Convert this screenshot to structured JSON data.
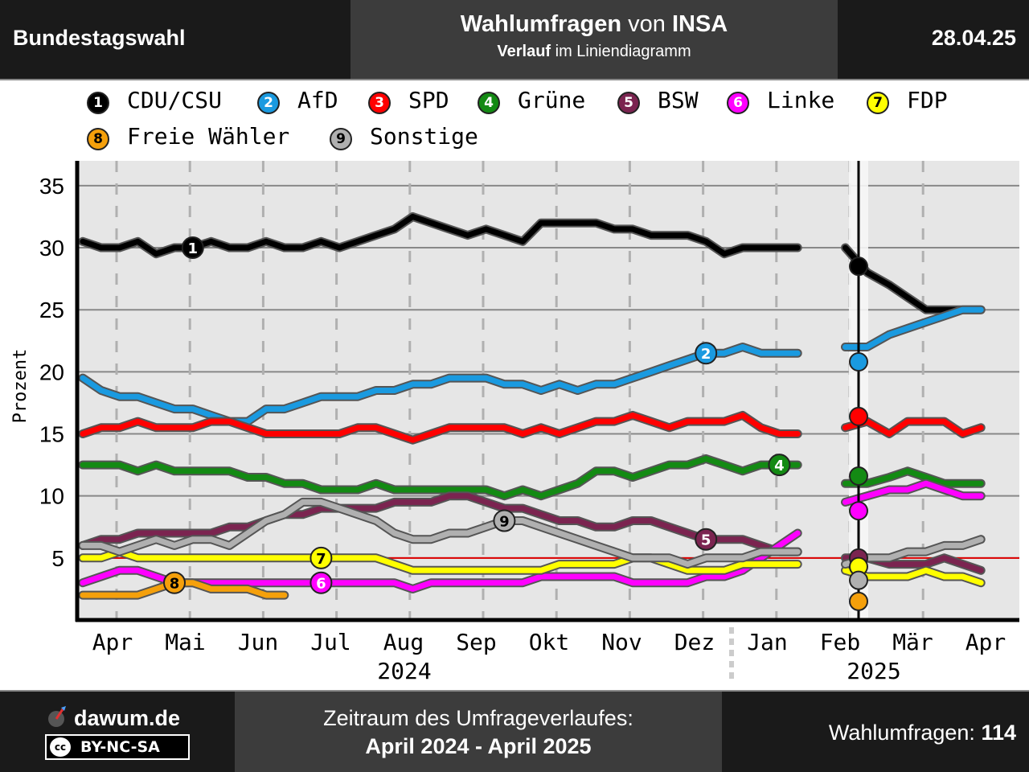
{
  "header": {
    "left_label": "Bundestagswahl",
    "title_bold1": "Wahlumfragen",
    "title_mid": " von ",
    "title_bold2": "INSA",
    "subtitle_bold": "Verlauf",
    "subtitle_rest": " im Liniendiagramm",
    "date": "28.04.25"
  },
  "footer": {
    "brand": "dawum.de",
    "license": "BY-NC-SA",
    "license_icon": "cc",
    "period_label": "Zeitraum des Umfrageverlaufes:",
    "period_value": "April 2024 - April 2025",
    "count_label": "Wahlumfragen: ",
    "count_value": "114"
  },
  "chart_data": {
    "type": "line",
    "ylabel": "Prozent",
    "ylim": [
      0,
      37
    ],
    "yticks": [
      5,
      10,
      15,
      20,
      25,
      30,
      35
    ],
    "threshold": 5,
    "election_marker": "Feb 2025",
    "x_month_labels": [
      "Apr",
      "Mai",
      "Jun",
      "Jul",
      "Aug",
      "Sep",
      "Okt",
      "Nov",
      "Dez",
      "Jan",
      "Feb",
      "Mär",
      "Apr"
    ],
    "x_year_labels": [
      "2024",
      "2025"
    ],
    "x": [
      0,
      0.25,
      0.5,
      0.75,
      1,
      1.25,
      1.5,
      1.75,
      2,
      2.25,
      2.5,
      2.75,
      3,
      3.25,
      3.5,
      3.75,
      4,
      4.25,
      4.5,
      4.75,
      5,
      5.25,
      5.5,
      5.75,
      6,
      6.25,
      6.5,
      6.75,
      7,
      7.25,
      7.5,
      7.75,
      8,
      8.25,
      8.5,
      8.75,
      9,
      9.25,
      9.5,
      9.75,
      10.1,
      10.4,
      10.7,
      11,
      11.25,
      11.5,
      11.75,
      12,
      12.25
    ],
    "series": [
      {
        "number": "1",
        "name": "CDU/CSU",
        "color": "#000000",
        "label_at": 1.5,
        "election_result": 28.5,
        "values": [
          30.5,
          30,
          30,
          30.5,
          29.5,
          30,
          30,
          30.5,
          30,
          30,
          30.5,
          30,
          30,
          30.5,
          30,
          30.5,
          31,
          31.5,
          32.5,
          32,
          31.5,
          31,
          31.5,
          31,
          30.5,
          32,
          32,
          32,
          32,
          31.5,
          31.5,
          31,
          31,
          31,
          30.5,
          29.5,
          30,
          30,
          30,
          30,
          null,
          30,
          28,
          27,
          26,
          25,
          25,
          25,
          25
        ]
      },
      {
        "number": "2",
        "name": "AfD",
        "color": "#1a9ae0",
        "label_at": 8.5,
        "election_result": 20.8,
        "values": [
          19.5,
          18.5,
          18,
          18,
          17.5,
          17,
          17,
          16.5,
          16,
          16,
          17,
          17,
          17.5,
          18,
          18,
          18,
          18.5,
          18.5,
          19,
          19,
          19.5,
          19.5,
          19.5,
          19,
          19,
          18.5,
          19,
          18.5,
          19,
          19,
          19.5,
          20,
          20.5,
          21,
          21.5,
          21.5,
          22,
          21.5,
          21.5,
          21.5,
          null,
          22,
          22,
          23,
          23.5,
          24,
          24.5,
          25,
          25
        ]
      },
      {
        "number": "3",
        "name": "SPD",
        "color": "#ff0000",
        "label_at": 10.5,
        "election_result": 16.4,
        "values": [
          15,
          15.5,
          15.5,
          16,
          15.5,
          15.5,
          15.5,
          16,
          16,
          15.5,
          15,
          15,
          15,
          15,
          15,
          15.5,
          15.5,
          15,
          14.5,
          15,
          15.5,
          15.5,
          15.5,
          15.5,
          15,
          15.5,
          15,
          15.5,
          16,
          16,
          16.5,
          16,
          15.5,
          16,
          16,
          16,
          16.5,
          15.5,
          15,
          15,
          null,
          15.5,
          16,
          15,
          16,
          16,
          16,
          15,
          15.5
        ]
      },
      {
        "number": "4",
        "name": "Grüne",
        "color": "#138a13",
        "label_at": 9.5,
        "election_result": 11.6,
        "values": [
          12.5,
          12.5,
          12.5,
          12,
          12.5,
          12,
          12,
          12,
          12,
          11.5,
          11.5,
          11,
          11,
          10.5,
          10.5,
          10.5,
          11,
          10.5,
          10.5,
          10.5,
          10.5,
          10.5,
          10.5,
          10,
          10.5,
          10,
          10.5,
          11,
          12,
          12,
          11.5,
          12,
          12.5,
          12.5,
          13,
          12.5,
          12,
          12.5,
          12.5,
          12.5,
          null,
          11,
          11,
          11.5,
          12,
          11.5,
          11,
          11,
          11
        ]
      },
      {
        "number": "5",
        "name": "BSW",
        "color": "#7b2450",
        "label_at": 8.5,
        "election_result": 5,
        "values": [
          6,
          6.5,
          6.5,
          7,
          7,
          7,
          7,
          7,
          7.5,
          7.5,
          8,
          8.5,
          8.5,
          9,
          9,
          9,
          9,
          9.5,
          9.5,
          9.5,
          10,
          10,
          9.5,
          9,
          9,
          8.5,
          8,
          8,
          7.5,
          7.5,
          8,
          8,
          7.5,
          7,
          6.5,
          6.5,
          6.5,
          6,
          5.5,
          5.5,
          null,
          5,
          5,
          4.5,
          4.5,
          4.5,
          5,
          4.5,
          4
        ]
      },
      {
        "number": "6",
        "name": "Linke",
        "color": "#ff00ff",
        "label_at": 3.25,
        "election_result": 8.8,
        "values": [
          3,
          3.5,
          4,
          4,
          3.5,
          3,
          3,
          3,
          3,
          3,
          3,
          3,
          3,
          3,
          3,
          3,
          3,
          3,
          2.5,
          3,
          3,
          3,
          3,
          3,
          3,
          3.5,
          3.5,
          3.5,
          3.5,
          3.5,
          3,
          3,
          3,
          3,
          3.5,
          3.5,
          4,
          5,
          6,
          7,
          null,
          9.5,
          10,
          10.5,
          10.5,
          11,
          10.5,
          10,
          10
        ]
      },
      {
        "number": "7",
        "name": "FDP",
        "color": "#ffff00",
        "label_at": 3.25,
        "election_result": 4.3,
        "values": [
          5,
          5,
          5.5,
          5,
          5,
          5,
          5,
          5,
          5,
          5,
          5,
          5,
          5,
          5,
          5,
          5,
          5,
          4.5,
          4,
          4,
          4,
          4,
          4,
          4,
          4,
          4,
          4.5,
          4.5,
          4.5,
          4.5,
          5,
          5,
          4.5,
          4,
          4,
          4,
          4.5,
          4.5,
          4.5,
          4.5,
          null,
          4,
          3.5,
          3.5,
          3.5,
          4,
          3.5,
          3.5,
          3
        ]
      },
      {
        "number": "8",
        "name": "Freie Wähler",
        "color": "#f5a00b",
        "label_at": 1.25,
        "election_result": 1.5,
        "values": [
          2,
          2,
          2,
          2,
          2.5,
          3,
          3,
          2.5,
          2.5,
          2.5,
          2,
          2,
          null,
          null,
          null,
          null,
          null,
          null,
          null,
          null,
          null,
          null,
          null,
          null,
          null,
          null,
          null,
          null,
          null,
          null,
          null,
          null,
          null,
          null,
          null,
          null,
          null,
          null,
          null,
          null,
          null,
          null,
          null,
          null,
          null,
          null,
          null,
          null,
          null
        ]
      },
      {
        "number": "9",
        "name": "Sonstige",
        "color": "#b0b0b0",
        "label_at": 5.75,
        "election_result": 3.2,
        "values": [
          6,
          6,
          5.5,
          6,
          6.5,
          6,
          6.5,
          6.5,
          6,
          7,
          8,
          8.5,
          9.5,
          9.5,
          9,
          8.5,
          8,
          7,
          6.5,
          6.5,
          7,
          7,
          7.5,
          8,
          8,
          7.5,
          7,
          6.5,
          6,
          5.5,
          5,
          5,
          5,
          4.5,
          5,
          5,
          5,
          5.5,
          5.5,
          5.5,
          null,
          4.5,
          5,
          5,
          5.5,
          5.5,
          6,
          6,
          6.5
        ]
      }
    ]
  }
}
